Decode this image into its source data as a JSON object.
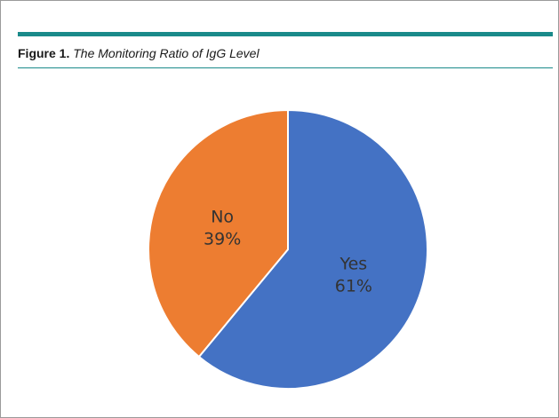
{
  "figure": {
    "label": "Figure 1.",
    "title": "The Monitoring Ratio of IgG Level"
  },
  "colors": {
    "rule": "#1a8a8a",
    "yes": "#4472c4",
    "no": "#ed7d31",
    "separator": "#ffffff"
  },
  "chart_data": {
    "type": "pie",
    "title": "",
    "slices": [
      {
        "label": "Yes",
        "value": 61,
        "value_text": "61%"
      },
      {
        "label": "No",
        "value": 39,
        "value_text": "39%"
      }
    ],
    "start_angle_deg": 0,
    "direction": "clockwise",
    "legend": "none"
  }
}
